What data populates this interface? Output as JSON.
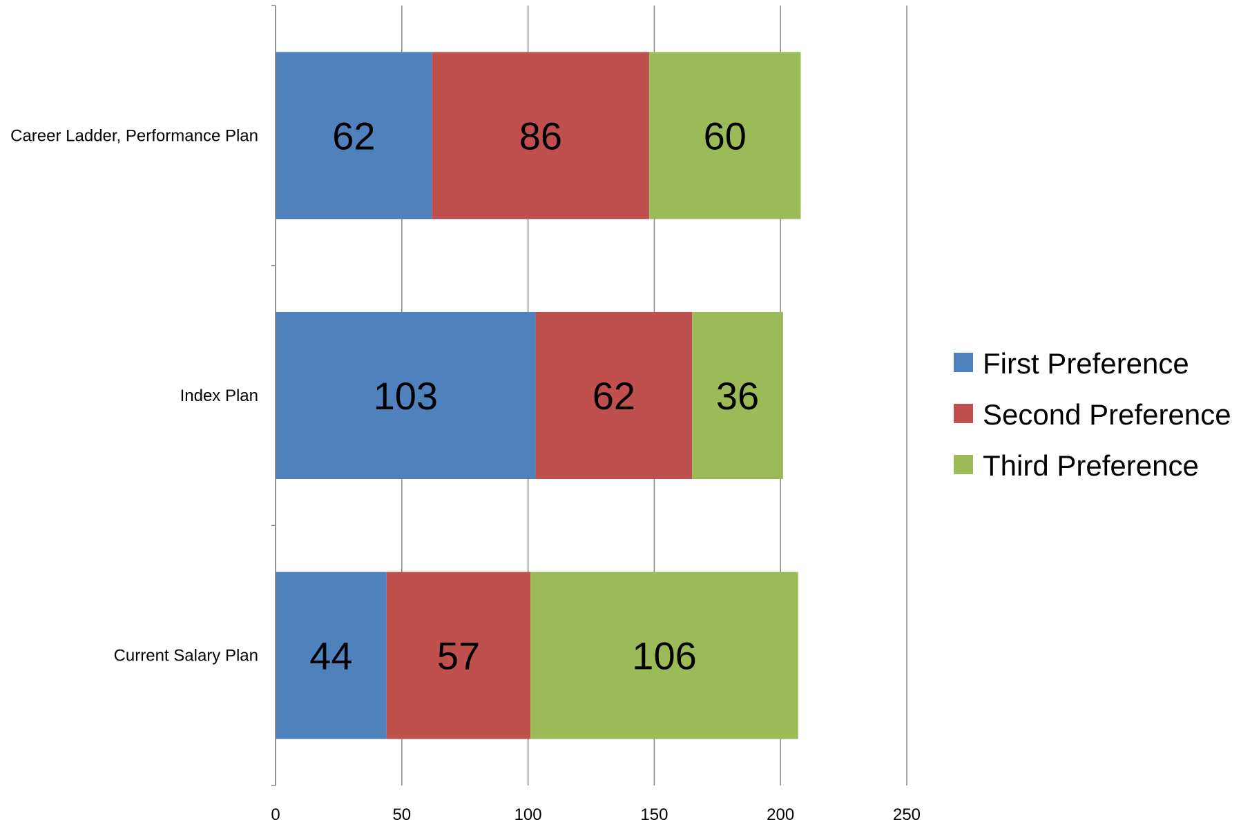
{
  "chart_data": {
    "type": "bar",
    "orientation": "horizontal",
    "stacked": true,
    "categories": [
      "Career Ladder, Performance Plan",
      "Index Plan",
      "Current Salary Plan"
    ],
    "series": [
      {
        "name": "First Preference",
        "color": "#4F81BD",
        "values": [
          62,
          103,
          44
        ]
      },
      {
        "name": "Second Preference",
        "color": "#C0504D",
        "values": [
          86,
          62,
          57
        ]
      },
      {
        "name": "Third Preference",
        "color": "#9BBB59",
        "values": [
          60,
          36,
          106
        ]
      }
    ],
    "xlim": [
      0,
      250
    ],
    "xticks": [
      0,
      50,
      100,
      150,
      200,
      250
    ],
    "grid": "vertical",
    "legend_position": "right",
    "title": "",
    "xlabel": "",
    "ylabel": ""
  }
}
